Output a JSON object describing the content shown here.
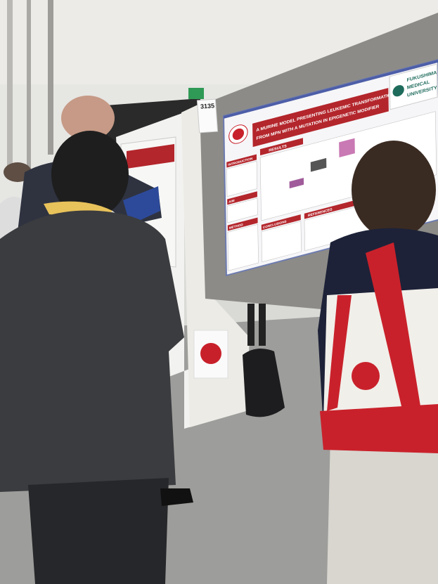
{
  "booth_number": "3135",
  "poster": {
    "title_lines": [
      "A MURINE MODEL PRESENTING LEUKEMIC TRANSFORMATION",
      "FROM MPN WITH A MUTATION IN EPIGENETIC MODIFIER"
    ],
    "institution_lines": [
      "FUKUSHIMA",
      "MEDICAL",
      "UNIVERSITY"
    ],
    "sections": {
      "introduction": "INTRODUCTION",
      "aim": "AIM",
      "method": "METHOD",
      "results": "RESULTS",
      "conclusions": "CONCLUSIONS",
      "references": "REFERENCES"
    }
  }
}
